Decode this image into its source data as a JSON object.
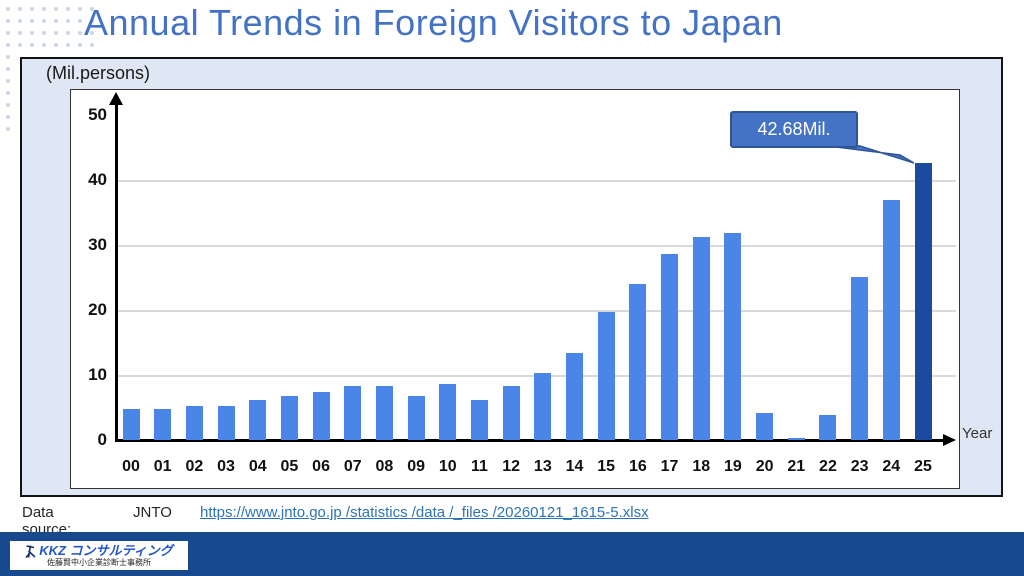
{
  "title": "Annual Trends in Foreign Visitors to Japan",
  "chart_data": {
    "type": "bar",
    "title": "Annual Trends in Foreign Visitors to Japan",
    "unit_label": "(Mil.persons)",
    "x_axis_label": "Year",
    "xlabel": "Year",
    "ylabel": "Mil.persons",
    "categories": [
      "00",
      "01",
      "02",
      "03",
      "04",
      "05",
      "06",
      "07",
      "08",
      "09",
      "10",
      "11",
      "12",
      "13",
      "14",
      "15",
      "16",
      "17",
      "18",
      "19",
      "20",
      "21",
      "22",
      "23",
      "24",
      "25"
    ],
    "values": [
      4.76,
      4.77,
      5.24,
      5.21,
      6.14,
      6.73,
      7.33,
      8.35,
      8.35,
      6.79,
      8.61,
      6.22,
      8.36,
      10.36,
      13.41,
      19.74,
      24.04,
      28.69,
      31.19,
      31.88,
      4.12,
      0.25,
      3.83,
      25.07,
      36.87,
      42.68
    ],
    "ylim": [
      0,
      50
    ],
    "y_ticks": [
      0,
      10,
      20,
      30,
      40,
      50
    ],
    "gridlines": [
      10,
      20,
      30,
      40
    ],
    "grid": "horizontal",
    "legend": "none",
    "highlight_index": 25,
    "annotation": {
      "text": "42.68Mil.",
      "target_category": "25",
      "target_value": 42.68
    },
    "colors": {
      "bar": "#4A86E8",
      "highlight_bar": "#1C4A9E"
    }
  },
  "source": {
    "label": "Data source:",
    "org": "JNTO",
    "url": "https://www.jnto.go.jp /statistics /data /_files /20260121_1615-5.xlsx"
  },
  "footer": {
    "logo_title": "KKZ コンサルティング",
    "logo_subtitle": "佐藤賢中小企業診断士事務所"
  },
  "theme": {
    "title_color": "#4472C4",
    "container_bg": "#DEE7F3",
    "callout_fill": "#4472C4",
    "callout_border": "#2F5597",
    "url_color": "#2E74B5",
    "footer_bar": "#17498F",
    "logo_text_color": "#2157C6",
    "dots": "#CBD5E6"
  }
}
